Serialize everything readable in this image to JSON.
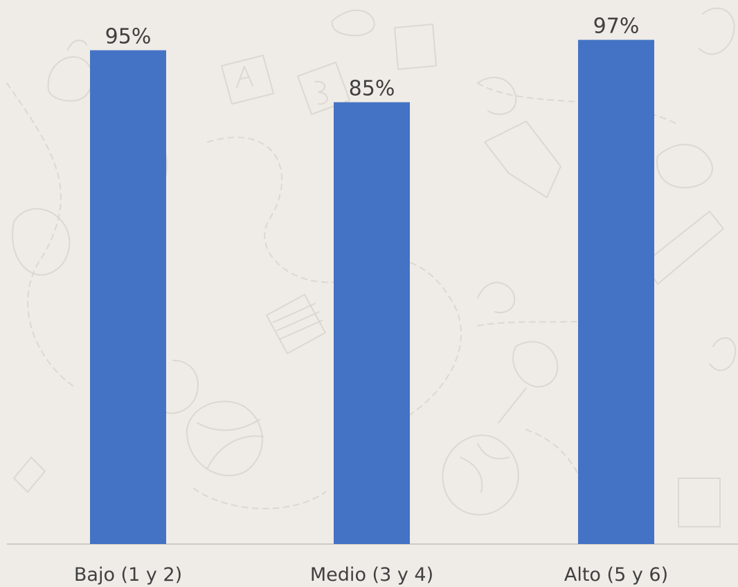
{
  "chart_data": {
    "type": "bar",
    "categories": [
      "Bajo (1 y 2)",
      "Medio (3 y 4)",
      "Alto (5 y 6)"
    ],
    "values": [
      95,
      85,
      97
    ],
    "value_labels": [
      "95%",
      "85%",
      "97%"
    ],
    "ylim": [
      0,
      100
    ],
    "grid": false,
    "legend": "none",
    "title": "",
    "xlabel": "",
    "ylabel": "",
    "colors": {
      "bar": "#4472c4",
      "text": "#404040",
      "axis": "#cfcac3",
      "background": "#efece7",
      "doodle": "#d8d3cc"
    }
  }
}
